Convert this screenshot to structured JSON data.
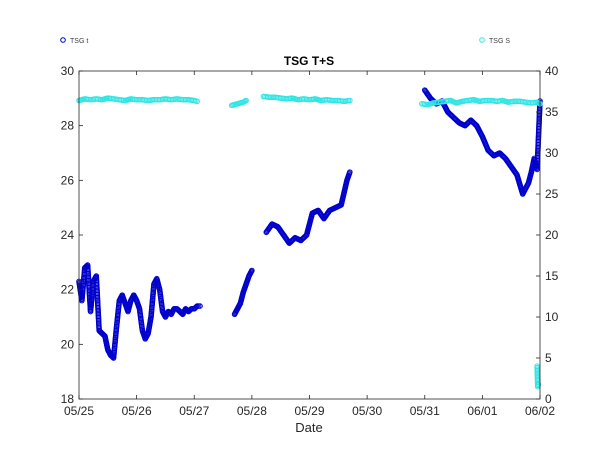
{
  "chart_data": {
    "type": "scatter",
    "title": "TSG T+S",
    "xlabel": "Date",
    "x_ticks": [
      "05/25",
      "05/26",
      "05/27",
      "05/28",
      "05/29",
      "05/30",
      "05/31",
      "06/01",
      "06/02"
    ],
    "xlim": [
      0,
      8
    ],
    "y_left": {
      "ylim": [
        18,
        30
      ],
      "ticks": [
        "18",
        "20",
        "22",
        "24",
        "26",
        "28",
        "30"
      ]
    },
    "y_right": {
      "ylim": [
        0,
        40
      ],
      "ticks": [
        "0",
        "5",
        "10",
        "15",
        "20",
        "25",
        "30",
        "35",
        "40"
      ]
    },
    "legend": {
      "left_position": "top-left",
      "right_position": "top-right"
    },
    "series": [
      {
        "name": "TSG t",
        "axis": "left",
        "color": "#0000cc",
        "segments": [
          {
            "x": [
              0.0,
              0.05,
              0.1,
              0.15,
              0.2,
              0.25,
              0.3,
              0.35,
              0.4,
              0.45,
              0.5,
              0.55,
              0.6,
              0.65,
              0.7,
              0.75,
              0.8,
              0.85,
              0.9,
              0.95,
              1.0,
              1.05,
              1.1,
              1.15,
              1.2,
              1.25,
              1.3,
              1.35,
              1.4,
              1.45,
              1.5,
              1.55,
              1.6,
              1.65,
              1.7,
              1.75,
              1.8,
              1.85,
              1.9,
              1.95,
              2.0,
              2.05,
              2.1
            ],
            "y": [
              22.3,
              21.6,
              22.8,
              22.9,
              21.2,
              22.3,
              22.5,
              20.5,
              20.4,
              20.3,
              19.8,
              19.6,
              19.5,
              20.6,
              21.6,
              21.8,
              21.5,
              21.2,
              21.6,
              21.8,
              21.6,
              21.3,
              20.5,
              20.2,
              20.4,
              21.0,
              22.2,
              22.4,
              22.0,
              21.2,
              21.0,
              21.2,
              21.1,
              21.3,
              21.3,
              21.2,
              21.1,
              21.3,
              21.2,
              21.3,
              21.3,
              21.4,
              21.4
            ]
          },
          {
            "x": [
              2.7,
              2.75,
              2.8,
              2.85,
              2.9,
              2.95,
              3.0
            ],
            "y": [
              21.1,
              21.3,
              21.5,
              21.9,
              22.2,
              22.5,
              22.7
            ]
          },
          {
            "x": [
              3.25,
              3.35,
              3.45,
              3.55,
              3.65,
              3.75,
              3.85,
              3.95,
              4.05,
              4.15,
              4.25,
              4.35,
              4.45,
              4.55,
              4.65,
              4.7
            ],
            "y": [
              24.1,
              24.4,
              24.3,
              24.0,
              23.7,
              23.9,
              23.8,
              24.0,
              24.8,
              24.9,
              24.6,
              24.9,
              25.0,
              25.1,
              26.0,
              26.3
            ]
          },
          {
            "x": [
              6.0,
              6.1,
              6.2,
              6.3,
              6.4,
              6.5,
              6.6,
              6.7,
              6.8,
              6.9,
              7.0,
              7.1,
              7.2,
              7.3,
              7.4,
              7.5,
              7.6,
              7.7,
              7.8,
              7.85,
              7.9,
              7.95,
              8.0
            ],
            "y": [
              29.3,
              29.0,
              28.8,
              28.9,
              28.5,
              28.3,
              28.1,
              28.0,
              28.2,
              28.0,
              27.6,
              27.1,
              26.9,
              27.0,
              26.8,
              26.5,
              26.2,
              25.5,
              25.9,
              26.3,
              26.8,
              26.4,
              28.9
            ]
          }
        ]
      },
      {
        "name": "TSG S",
        "axis": "right",
        "color": "#33e5e5",
        "segments": [
          {
            "x": [
              0.0,
              0.1,
              0.2,
              0.3,
              0.4,
              0.5,
              0.6,
              0.7,
              0.8,
              0.9,
              1.0,
              1.1,
              1.2,
              1.3,
              1.4,
              1.5,
              1.6,
              1.7,
              1.8,
              1.9,
              2.0,
              2.05
            ],
            "y": [
              36.4,
              36.6,
              36.5,
              36.6,
              36.5,
              36.7,
              36.6,
              36.5,
              36.4,
              36.6,
              36.5,
              36.5,
              36.4,
              36.5,
              36.5,
              36.6,
              36.5,
              36.6,
              36.5,
              36.5,
              36.4,
              36.3
            ]
          },
          {
            "x": [
              2.65,
              2.75,
              2.85,
              2.9
            ],
            "y": [
              35.8,
              36.0,
              36.2,
              36.4
            ]
          },
          {
            "x": [
              3.2,
              3.3,
              3.4,
              3.5,
              3.6,
              3.7,
              3.8,
              3.9,
              4.0,
              4.1,
              4.2,
              4.3,
              4.4,
              4.5,
              4.6,
              4.7
            ],
            "y": [
              36.9,
              36.8,
              36.8,
              36.7,
              36.6,
              36.7,
              36.5,
              36.6,
              36.5,
              36.6,
              36.4,
              36.5,
              36.4,
              36.4,
              36.3,
              36.4
            ]
          },
          {
            "x": [
              5.95,
              6.05,
              6.15,
              6.25,
              6.35,
              6.45,
              6.55,
              6.65,
              6.75,
              6.85,
              6.95,
              7.05,
              7.15,
              7.25,
              7.35,
              7.45,
              7.55,
              7.65,
              7.75,
              7.85,
              7.95,
              8.0
            ],
            "y": [
              36.0,
              35.9,
              36.1,
              36.2,
              36.3,
              36.4,
              36.1,
              36.3,
              36.4,
              36.5,
              36.3,
              36.4,
              36.4,
              36.3,
              36.4,
              36.2,
              36.3,
              36.3,
              36.2,
              36.1,
              36.2,
              36.0
            ]
          },
          {
            "x": [
              7.95,
              7.96,
              7.97
            ],
            "y": [
              4.0,
              1.5,
              1.8
            ]
          }
        ]
      }
    ]
  }
}
